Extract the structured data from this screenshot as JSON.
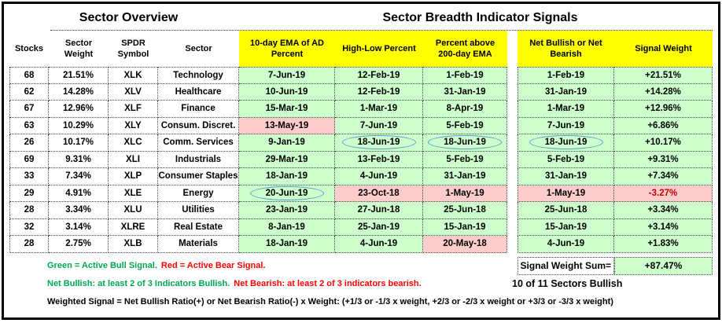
{
  "titles": {
    "left": "Sector Overview",
    "right": "Sector Breadth Indicator Signals"
  },
  "chart_data": {
    "type": "table",
    "title": "Sector Breadth Indicator Signals",
    "columns": [
      "Stocks",
      "Sector Weight",
      "SPDR Symbol",
      "Sector",
      "10-day EMA of AD Percent",
      "High-Low Percent",
      "Percent above 200-day EMA",
      "Net Bullish or Net Bearish",
      "Signal Weight"
    ],
    "rows": [
      [
        "68",
        "21.51%",
        "XLK",
        "Technology",
        "7-Jun-19",
        "12-Feb-19",
        "1-Feb-19",
        "1-Feb-19",
        "+21.51%"
      ],
      [
        "62",
        "14.28%",
        "XLV",
        "Healthcare",
        "10-Jun-19",
        "12-Feb-19",
        "31-Jan-19",
        "31-Jan-19",
        "+14.28%"
      ],
      [
        "67",
        "12.96%",
        "XLF",
        "Finance",
        "15-Mar-19",
        "1-Mar-19",
        "8-Apr-19",
        "1-Mar-19",
        "+12.96%"
      ],
      [
        "63",
        "10.29%",
        "XLY",
        "Consum. Discret.",
        "13-May-19",
        "7-Jun-19",
        "5-Feb-19",
        "7-Jun-19",
        "+6.86%"
      ],
      [
        "26",
        "10.17%",
        "XLC",
        "Comm. Services",
        "9-Jan-19",
        "18-Jun-19",
        "18-Jun-19",
        "18-Jun-19",
        "+10.17%"
      ],
      [
        "69",
        "9.31%",
        "XLI",
        "Industrials",
        "29-Mar-19",
        "13-Feb-19",
        "5-Feb-19",
        "5-Feb-19",
        "+9.31%"
      ],
      [
        "33",
        "7.34%",
        "XLP",
        "Consumer Staples",
        "18-Jan-19",
        "4-Jun-19",
        "31-Jan-19",
        "31-Jan-19",
        "+7.34%"
      ],
      [
        "29",
        "4.91%",
        "XLE",
        "Energy",
        "20-Jun-19",
        "23-Oct-18",
        "1-May-19",
        "1-May-19",
        "-3.27%"
      ],
      [
        "28",
        "3.34%",
        "XLU",
        "Utilities",
        "23-Jan-19",
        "27-Jun-18",
        "25-Jun-18",
        "25-Jun-18",
        "+3.34%"
      ],
      [
        "32",
        "3.14%",
        "XLRE",
        "Real Estate",
        "8-Jan-19",
        "25-Jan-19",
        "15-Jan-19",
        "15-Jan-19",
        "+3.14%"
      ],
      [
        "28",
        "2.75%",
        "XLB",
        "Materials",
        "18-Jan-19",
        "4-Jun-19",
        "20-May-18",
        "4-Jun-19",
        "+1.83%"
      ]
    ],
    "cell_styles": {
      "pink": [
        [
          4,
          5
        ],
        [
          8,
          6
        ],
        [
          8,
          7
        ],
        [
          8,
          8
        ],
        [
          8,
          9
        ],
        [
          11,
          7
        ]
      ],
      "circled": [
        [
          5,
          6
        ],
        [
          5,
          7
        ],
        [
          5,
          8
        ],
        [
          8,
          5
        ]
      ],
      "red_text": [
        [
          8,
          9
        ]
      ]
    }
  },
  "summary": {
    "sum_label": "Signal Weight Sum=",
    "sum_value": "+87.47%",
    "bullish_count": "10 of 11 Sectors Bullish"
  },
  "legend": {
    "line1_green": "Green = Active Bull Signal.",
    "line1_red": "Red = Active Bear Signal.",
    "line2_green": "Net Bullish: at least 2 of 3 Indicators Bullish.",
    "line2_red": "Net Bearish: at least 2 of 3 indicators bearish.",
    "line3": "Weighted Signal = Net Bullish Ratio(+) or Net Bearish Ratio(-) x Weight: (+1/3 or -1/3 x weight, +2/3 or -2/3 x weight or +3/3 or -3/3 x weight)"
  },
  "colors": {
    "header_yellow": "#FFFF00",
    "bull_cell_green": "#CCFFCC",
    "bear_cell_pink": "#FFCCCC",
    "legend_green": "#00A650",
    "legend_red": "#FF0000",
    "bear_value_red": "#C00000",
    "circle_blue": "#5B9BD5"
  }
}
